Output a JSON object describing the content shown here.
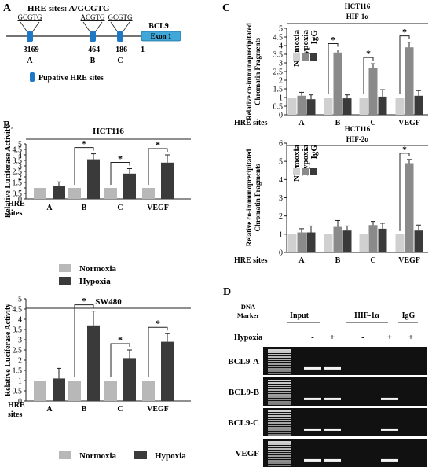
{
  "panel_letters": {
    "a": "A",
    "b": "B",
    "c": "C",
    "d": "D"
  },
  "panel_a": {
    "title": "HRE sites:  A/GCGTG",
    "gene": "BCL9",
    "exon": "Exon 1",
    "sites": [
      {
        "seq": "GCGTG",
        "pos": "-3169",
        "name": "A"
      },
      {
        "seq": "ACGTG",
        "pos": "-464",
        "name": "B"
      },
      {
        "seq": "GCGTG",
        "pos": "-186",
        "name": "C"
      }
    ],
    "tss": "-1",
    "legend": "Pupative HRE sites",
    "colors": {
      "site": "#1e78c8",
      "exon": "#3fa8d8"
    }
  },
  "panel_b": {
    "ylabel": "Relative Luciferase Activity",
    "xlabel_line1": "HRE",
    "xlabel_line2": "sites",
    "legend": [
      "Normoxia",
      "Hypoxia"
    ],
    "sig": "*",
    "colors": {
      "Normoxia": "#b8b8b8",
      "Hypoxia": "#3a3a3a"
    }
  },
  "panel_c": {
    "ylabel_line1": "Relative co-immunoprecipitated",
    "ylabel_line2": "Chromatin Fragments",
    "xlabel": "HRE sites",
    "legend": [
      "Normoxia",
      "Hypoxia",
      "IgG"
    ],
    "sig": "*",
    "colors": {
      "Normoxia": "#d0d0d0",
      "Hypoxia": "#8a8a8a",
      "IgG": "#3a3a3a"
    }
  },
  "panel_d": {
    "marker_line1": "DNA",
    "marker_line2": "Marker",
    "groups": [
      "Input",
      "HIF-1α",
      "IgG"
    ],
    "hypoxia_label": "Hypoxia",
    "lane_signs": [
      "-",
      "+",
      "-",
      "+",
      "+"
    ],
    "rows": [
      "BCL9-A",
      "BCL9-B",
      "BCL9-C",
      "VEGF"
    ],
    "band_presence": [
      [
        true,
        true,
        false,
        false,
        false
      ],
      [
        true,
        true,
        false,
        true,
        false
      ],
      [
        true,
        true,
        false,
        true,
        false
      ],
      [
        true,
        true,
        false,
        true,
        false
      ]
    ]
  },
  "chart_data": [
    {
      "type": "bar",
      "title": "HCT116",
      "categories": [
        "A",
        "B",
        "C",
        "VEGF"
      ],
      "series": [
        {
          "name": "Normoxia",
          "values": [
            1.0,
            1.0,
            1.0,
            1.0
          ],
          "errors": [
            0,
            0,
            0,
            0
          ]
        },
        {
          "name": "Hypoxia",
          "values": [
            1.2,
            3.6,
            2.3,
            3.3
          ],
          "errors": [
            0.35,
            0.5,
            0.45,
            0.7
          ]
        }
      ],
      "yticks": [
        0,
        0.5,
        1,
        1.5,
        2,
        2.5,
        3,
        3.5,
        4,
        4.5,
        5
      ],
      "ylim": [
        0,
        5
      ],
      "significant": [
        "B",
        "C",
        "VEGF"
      ]
    },
    {
      "type": "bar",
      "title": "SW480",
      "categories": [
        "A",
        "B",
        "C",
        "VEGF"
      ],
      "series": [
        {
          "name": "Normoxia",
          "values": [
            1.0,
            1.0,
            1.0,
            1.0
          ],
          "errors": [
            0,
            0,
            0,
            0
          ]
        },
        {
          "name": "Hypoxia",
          "values": [
            1.1,
            3.7,
            2.1,
            2.9
          ],
          "errors": [
            0.5,
            0.7,
            0.4,
            0.4
          ]
        }
      ],
      "yticks": [
        0,
        0.5,
        1,
        1.5,
        2,
        2.5,
        3,
        3.5,
        4,
        4.5,
        5
      ],
      "ylim": [
        0,
        5
      ],
      "significant": [
        "B",
        "C",
        "VEGF"
      ]
    },
    {
      "type": "bar",
      "title": "HCT116",
      "subtitle": "HIF-1α",
      "categories": [
        "A",
        "B",
        "C",
        "VEGF"
      ],
      "series": [
        {
          "name": "Normoxia",
          "values": [
            1.0,
            1.0,
            1.0,
            1.0
          ],
          "errors": [
            0,
            0,
            0,
            0
          ]
        },
        {
          "name": "Hypoxia",
          "values": [
            1.1,
            3.6,
            2.7,
            3.9
          ],
          "errors": [
            0.2,
            0.15,
            0.25,
            0.3
          ]
        },
        {
          "name": "IgG",
          "values": [
            0.9,
            0.95,
            1.05,
            1.1
          ],
          "errors": [
            0.25,
            0.2,
            0.4,
            0.3
          ]
        }
      ],
      "yticks": [
        0,
        0.5,
        1,
        1.5,
        2,
        2.5,
        3,
        3.5,
        4,
        4.5,
        5
      ],
      "ylim": [
        0,
        5
      ],
      "significant": [
        "B",
        "C",
        "VEGF"
      ]
    },
    {
      "type": "bar",
      "title": "HCT116",
      "subtitle": "HIF-2α",
      "categories": [
        "A",
        "B",
        "C",
        "VEGF"
      ],
      "series": [
        {
          "name": "Normoxia",
          "values": [
            1.0,
            1.0,
            1.0,
            1.0
          ],
          "errors": [
            0,
            0,
            0,
            0
          ]
        },
        {
          "name": "Hypoxia",
          "values": [
            1.1,
            1.4,
            1.5,
            4.9
          ],
          "errors": [
            0.2,
            0.35,
            0.2,
            0.2
          ]
        },
        {
          "name": "IgG",
          "values": [
            1.1,
            1.2,
            1.3,
            1.2
          ],
          "errors": [
            0.35,
            0.25,
            0.3,
            0.3
          ]
        }
      ],
      "yticks": [
        0,
        1,
        2,
        3,
        4,
        5,
        6
      ],
      "ylim": [
        0,
        6
      ],
      "significant": [
        "VEGF"
      ]
    }
  ]
}
